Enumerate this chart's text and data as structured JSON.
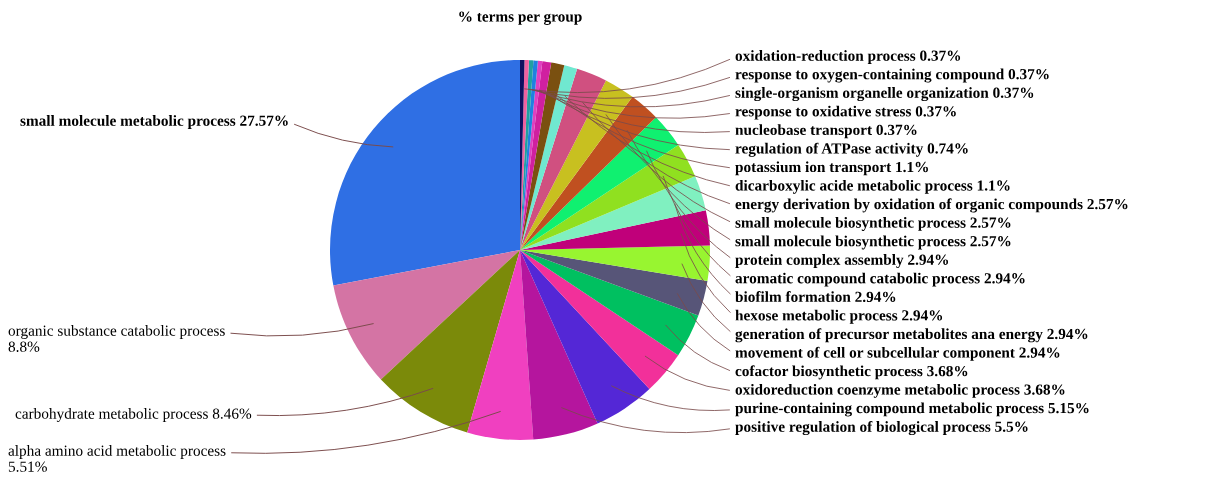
{
  "chart_data": {
    "type": "pie",
    "title": "% terms per group",
    "categories": [
      "small molecule metabolic process",
      "organic substance catabolic process",
      "carbohydrate metabolic process",
      "alpha amino acid metabolic process",
      "positive regulation of biological process",
      "purine-containing compound metabolic process",
      "oxidoreduction coenzyme metabolic process",
      "cofactor biosynthetic process",
      "movement of cell or subcellular component",
      "generation of precursor metabolites ana energy",
      "hexose metabolic process",
      "biofilm formation",
      "aromatic compound catabolic process",
      "protein complex assembly",
      "small molecule biosynthetic process",
      "small molecule biosynthetic process",
      "energy derivation by oxidation of organic compounds",
      "dicarboxylic acide metabolic process",
      "potassium ion transport",
      "regulation of ATPase activity",
      "nucleobase transport",
      "response to oxidative stress",
      "single-organism organelle organization",
      "response to oxygen-containing compound",
      "oxidation-reduction process"
    ],
    "values": [
      27.57,
      8.8,
      8.46,
      5.51,
      5.5,
      5.15,
      3.68,
      3.68,
      2.94,
      2.94,
      2.94,
      2.94,
      2.94,
      2.94,
      2.57,
      2.57,
      2.57,
      1.1,
      1.1,
      0.74,
      0.37,
      0.37,
      0.37,
      0.37,
      0.37
    ],
    "value_labels": [
      "27.57%",
      "8.8%",
      "8.46%",
      "5.51%",
      "5.5%",
      "5.15%",
      "3.68%",
      "3.68%",
      "2.94%",
      "2.94%",
      "2.94%",
      "2.94%",
      "2.94%",
      "2.94%",
      "2.57%",
      "2.57%",
      "2.57%",
      "1.1%",
      "1.1%",
      "0.74%",
      "0.37%",
      "0.37%",
      "0.37%",
      "0.37%",
      "0.37%"
    ],
    "colors": [
      "#2f6fe4",
      "#d474a4",
      "#7b8a0a",
      "#f040c0",
      "#b5159e",
      "#5427d6",
      "#f2309a",
      "#00c060",
      "#575578",
      "#98f530",
      "#c0007a",
      "#80f0c0",
      "#90e020",
      "#10f070",
      "#c05020",
      "#c8c020",
      "#d05080",
      "#70e8d0",
      "#7a5010",
      "#d020a0",
      "#e040c0",
      "#2080e0",
      "#20a0a0",
      "#f060a0",
      "#101060"
    ]
  }
}
